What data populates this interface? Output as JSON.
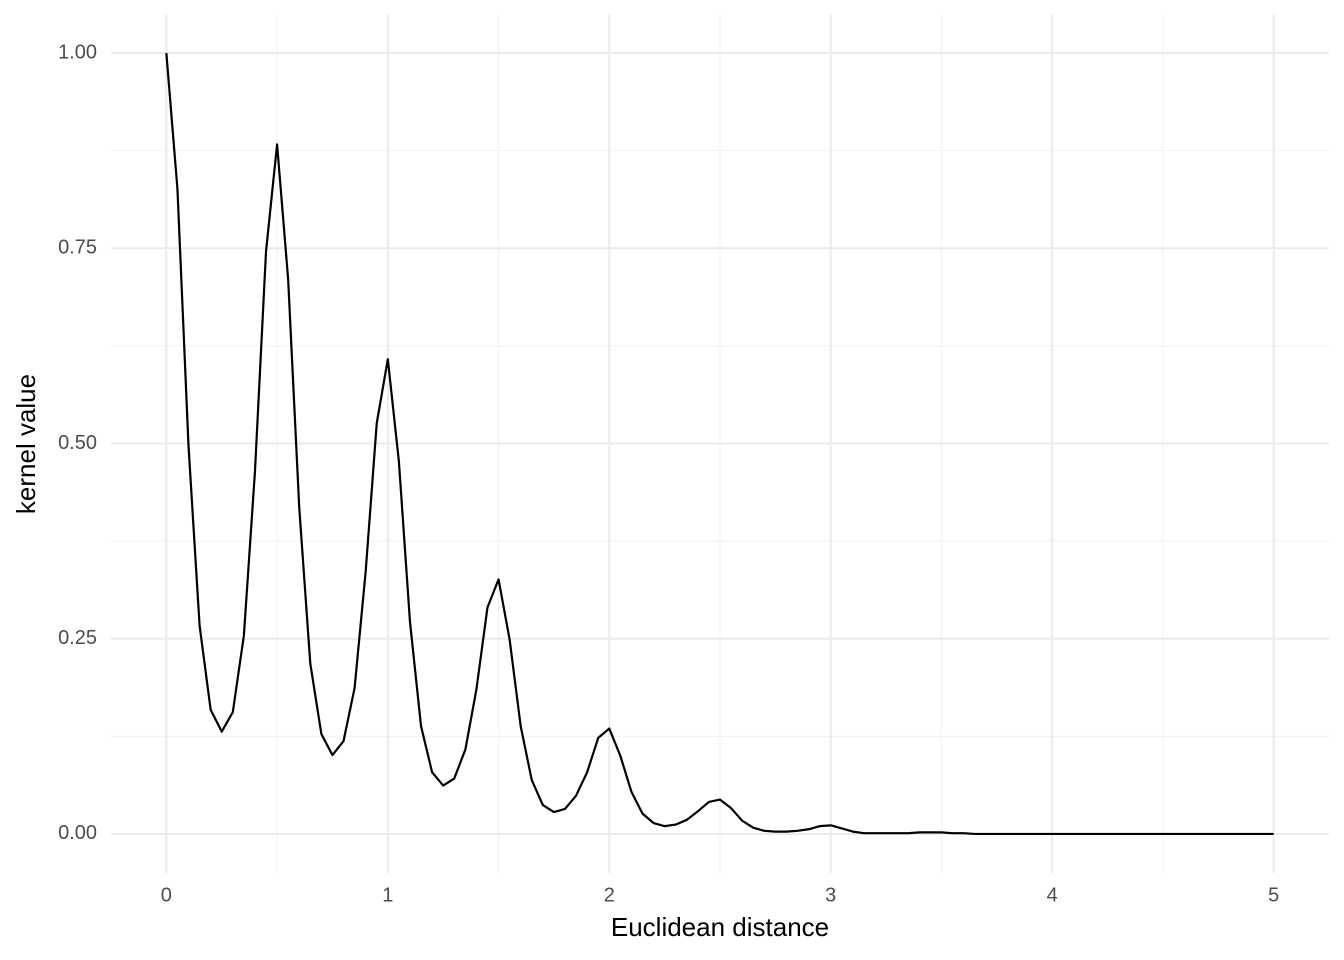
{
  "chart_data": {
    "type": "line",
    "xlabel": "Euclidean distance",
    "ylabel": "kernel value",
    "x": [
      0,
      0.05,
      0.1,
      0.15,
      0.2,
      0.25,
      0.3,
      0.35,
      0.4,
      0.45,
      0.5,
      0.55,
      0.6,
      0.65,
      0.7,
      0.75,
      0.8,
      0.85,
      0.9,
      0.95,
      1,
      1.05,
      1.1,
      1.15,
      1.2,
      1.25,
      1.3,
      1.35,
      1.4,
      1.45,
      1.5,
      1.55,
      1.6,
      1.65,
      1.7,
      1.75,
      1.8,
      1.85,
      1.9,
      1.95,
      2,
      2.05,
      2.1,
      2.15,
      2.2,
      2.25,
      2.3,
      2.35,
      2.4,
      2.45,
      2.5,
      2.55,
      2.6,
      2.65,
      2.7,
      2.75,
      2.8,
      2.85,
      2.9,
      2.95,
      3,
      3.05,
      3.1,
      3.15,
      3.2,
      3.25,
      3.3,
      3.35,
      3.4,
      3.45,
      3.5,
      3.55,
      3.6,
      3.65,
      3.7,
      3.75,
      3.8,
      3.85,
      3.9,
      3.95,
      4,
      4.05,
      4.1,
      4.15,
      4.2,
      4.25,
      4.3,
      4.35,
      4.4,
      4.45,
      4.5,
      4.55,
      4.6,
      4.65,
      4.7,
      4.75,
      4.8,
      4.85,
      4.9,
      4.95,
      5
    ],
    "series": [
      {
        "color": "#000000",
        "values": [
          1,
          0.826,
          0.497,
          0.267,
          0.159,
          0.131,
          0.156,
          0.254,
          0.464,
          0.746,
          0.883,
          0.71,
          0.418,
          0.218,
          0.128,
          0.101,
          0.119,
          0.187,
          0.336,
          0.526,
          0.608,
          0.477,
          0.272,
          0.138,
          0.079,
          0.062,
          0.071,
          0.108,
          0.185,
          0.29,
          0.326,
          0.249,
          0.138,
          0.069,
          0.037,
          0.028,
          0.032,
          0.049,
          0.079,
          0.123,
          0.135,
          0.1,
          0.054,
          0.026,
          0.014,
          0.01,
          0.012,
          0.018,
          0.029,
          0.041,
          0.044,
          0.033,
          0.017,
          0.008,
          0.004,
          0.003,
          0.003,
          0.004,
          0.006,
          0.01,
          0.011,
          0.007,
          0.003,
          0.001,
          0.001,
          0.001,
          0.001,
          0.001,
          0.002,
          0.002,
          0.002,
          0.001,
          0.001,
          0,
          0,
          0,
          0,
          0,
          0,
          0,
          0,
          0,
          0,
          0,
          0,
          0,
          0,
          0,
          0,
          0,
          0,
          0,
          0,
          0,
          0,
          0,
          0,
          0,
          0,
          0,
          0
        ]
      }
    ],
    "xlim": [
      -0.25,
      5.25
    ],
    "ylim": [
      -0.05,
      1.05
    ],
    "xticks": [
      0,
      1,
      2,
      3,
      4,
      5
    ],
    "yticks": [
      {
        "value": 0,
        "label": "0.00"
      },
      {
        "value": 0.25,
        "label": "0.25"
      },
      {
        "value": 0.5,
        "label": "0.50"
      },
      {
        "value": 0.75,
        "label": "0.75"
      },
      {
        "value": 1,
        "label": "1.00"
      }
    ],
    "grid": true
  }
}
